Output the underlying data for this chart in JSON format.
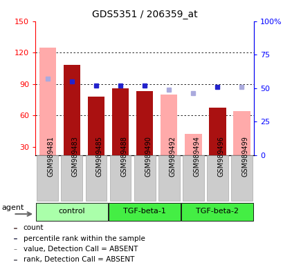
{
  "title": "GDS5351 / 206359_at",
  "samples": [
    "GSM989481",
    "GSM989483",
    "GSM989485",
    "GSM989488",
    "GSM989490",
    "GSM989492",
    "GSM989494",
    "GSM989496",
    "GSM989499"
  ],
  "count_values": [
    null,
    108,
    78,
    86,
    83,
    null,
    null,
    67,
    null
  ],
  "value_absent": [
    125,
    null,
    null,
    null,
    null,
    80,
    42,
    null,
    64
  ],
  "rank_present": [
    null,
    55,
    52,
    52,
    52,
    null,
    null,
    51,
    null
  ],
  "rank_absent": [
    57,
    null,
    null,
    null,
    null,
    49,
    46,
    null,
    51
  ],
  "group_control_color": "#ccffcc",
  "group_tgf_color": "#44ee44",
  "left_ylim": [
    22,
    150
  ],
  "left_yticks": [
    30,
    60,
    90,
    120,
    150
  ],
  "right_ylim": [
    0,
    100
  ],
  "right_yticks": [
    0,
    25,
    50,
    75,
    100
  ],
  "bar_color": "#aa1111",
  "rank_color": "#2222cc",
  "absent_bar_color": "#ffaaaa",
  "absent_rank_color": "#aaaadd",
  "grid_lines": [
    60,
    90,
    120
  ],
  "legend_items": [
    {
      "label": "count",
      "color": "#aa1111"
    },
    {
      "label": "percentile rank within the sample",
      "color": "#2222cc"
    },
    {
      "label": "value, Detection Call = ABSENT",
      "color": "#ffaaaa"
    },
    {
      "label": "rank, Detection Call = ABSENT",
      "color": "#aaaadd"
    }
  ]
}
